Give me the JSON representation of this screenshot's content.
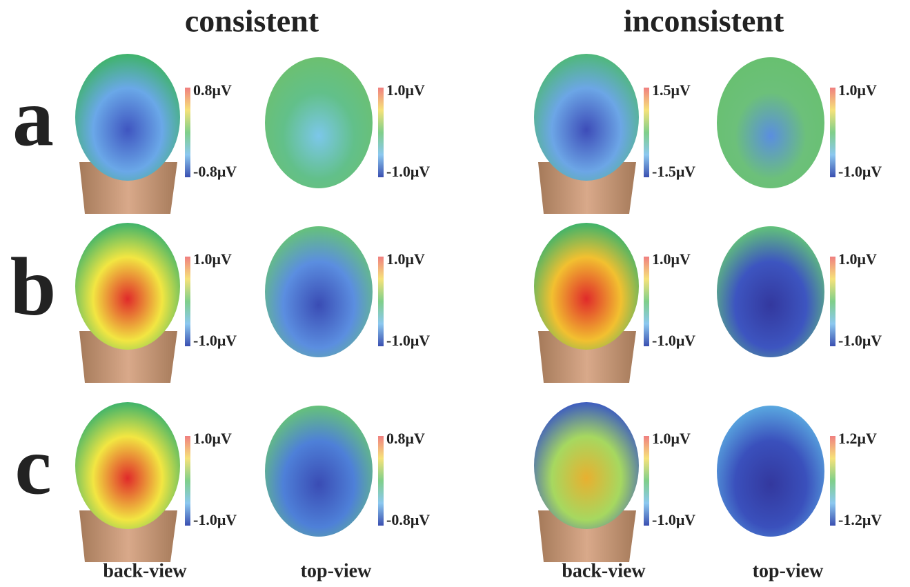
{
  "columns": [
    {
      "title": "consistent"
    },
    {
      "title": "inconsistent"
    }
  ],
  "rows": [
    {
      "label": "a",
      "panels": [
        {
          "max": "0.8μV",
          "min": "-0.8μV"
        },
        {
          "max": "1.0μV",
          "min": "-1.0μV"
        },
        {
          "max": "1.5μV",
          "min": "-1.5μV"
        },
        {
          "max": "1.0μV",
          "min": "-1.0μV"
        }
      ]
    },
    {
      "label": "b",
      "panels": [
        {
          "max": "1.0μV",
          "min": "-1.0μV"
        },
        {
          "max": "1.0μV",
          "min": "-1.0μV"
        },
        {
          "max": "1.0μV",
          "min": "-1.0μV"
        },
        {
          "max": "1.0μV",
          "min": "-1.0μV"
        }
      ]
    },
    {
      "label": "c",
      "panels": [
        {
          "max": "1.0μV",
          "min": "-1.0μV"
        },
        {
          "max": "0.8μV",
          "min": "-0.8μV"
        },
        {
          "max": "1.0μV",
          "min": "-1.0μV"
        },
        {
          "max": "1.2μV",
          "min": "-1.2μV"
        }
      ]
    }
  ],
  "view_labels": [
    "back-view",
    "top-view",
    "back-view",
    "top-view"
  ]
}
